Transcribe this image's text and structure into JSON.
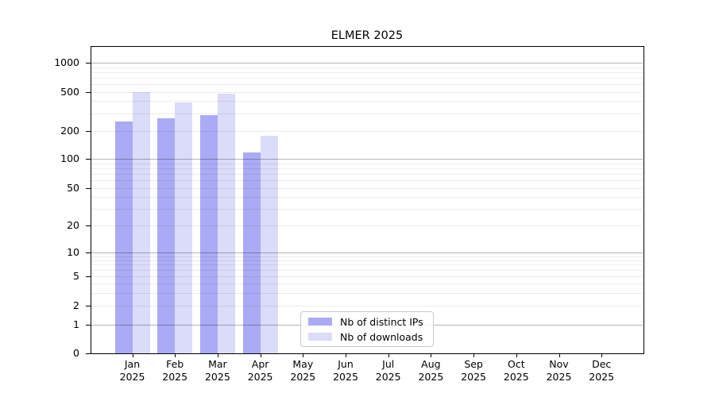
{
  "page": {
    "background_color": "#ffffff"
  },
  "chart_data": {
    "type": "bar",
    "title": "ELMER 2025",
    "categories": [
      "Jan",
      "Feb",
      "Mar",
      "Apr",
      "May",
      "Jun",
      "Jul",
      "Aug",
      "Sep",
      "Oct",
      "Nov",
      "Dec"
    ],
    "year_label": "2025",
    "series": [
      {
        "name": "Nb of distinct IPs",
        "color": "#aaaaf5",
        "values": [
          250,
          265,
          290,
          117,
          null,
          null,
          null,
          null,
          null,
          null,
          null,
          null
        ]
      },
      {
        "name": "Nb of downloads",
        "color": "#dbdbfa",
        "values": [
          500,
          385,
          480,
          176,
          null,
          null,
          null,
          null,
          null,
          null,
          null,
          null
        ]
      }
    ],
    "xlabel": "",
    "ylabel": "",
    "yscale": "symlog",
    "yticks": [
      0,
      1,
      2,
      5,
      10,
      20,
      50,
      100,
      200,
      500,
      1000
    ],
    "ylim": [
      0,
      1400
    ],
    "grid": "horizontal; major gridlines at decades (1,10,100,1000), light minor log gridlines between",
    "legend_position": "lower center inside plot",
    "bar_edge": "none"
  },
  "legend": {
    "items": [
      {
        "label": "Nb of distinct IPs",
        "color": "#aaaaf5"
      },
      {
        "label": "Nb of downloads",
        "color": "#dbdbfa"
      }
    ]
  }
}
